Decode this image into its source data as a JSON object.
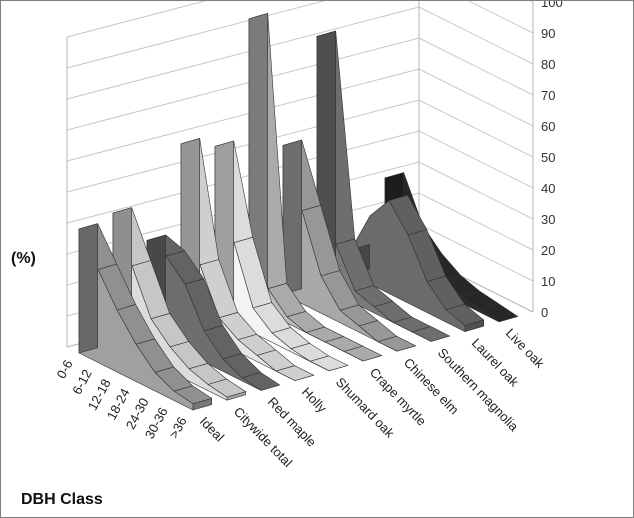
{
  "chart_data": {
    "type": "area",
    "view": "3d-ribbon",
    "ylabel": "(%)",
    "xlabel": "DBH Class",
    "categories": [
      "0-6",
      "6-12",
      "12-18",
      "18-24",
      "24-30",
      "30-36",
      ">36"
    ],
    "ylim": [
      0,
      100
    ],
    "yticks": [
      0,
      10,
      20,
      30,
      40,
      50,
      60,
      70,
      80,
      90,
      100
    ],
    "grid": true,
    "series": [
      {
        "name": "Ideal",
        "color": "#a0a0a0",
        "values": [
          40,
          30,
          20,
          12,
          6,
          3,
          2
        ]
      },
      {
        "name": "Citywide total",
        "color": "#dcdcdc",
        "values": [
          42,
          28,
          14,
          8,
          4,
          2,
          1
        ]
      },
      {
        "name": "Red maple",
        "color": "#6e6e6e",
        "values": [
          30,
          28,
          22,
          10,
          4,
          1,
          0
        ]
      },
      {
        "name": "Holly",
        "color": "#e6e6e6",
        "values": [
          58,
          22,
          8,
          4,
          2,
          0,
          0
        ]
      },
      {
        "name": "Shumard oak",
        "color": "#f4f4f4",
        "values": [
          54,
          26,
          8,
          3,
          1,
          0,
          0
        ]
      },
      {
        "name": "Crape myrtle",
        "color": "#bdbdbd",
        "values": [
          92,
          8,
          2,
          0,
          0,
          0,
          0
        ]
      },
      {
        "name": "Chinese elm",
        "color": "#a8a8a8",
        "values": [
          48,
          30,
          12,
          4,
          2,
          0,
          0
        ]
      },
      {
        "name": "Southern magnolia",
        "color": "#7a7a7a",
        "values": [
          80,
          16,
          4,
          2,
          0,
          0,
          0
        ]
      },
      {
        "name": "Laurel oak",
        "color": "#6b6b6b",
        "values": [
          8,
          22,
          30,
          22,
          10,
          4,
          2
        ]
      },
      {
        "name": "Live oak",
        "color": "#2b2b2b",
        "values": [
          28,
          14,
          8,
          4,
          2,
          1,
          0
        ]
      }
    ]
  }
}
